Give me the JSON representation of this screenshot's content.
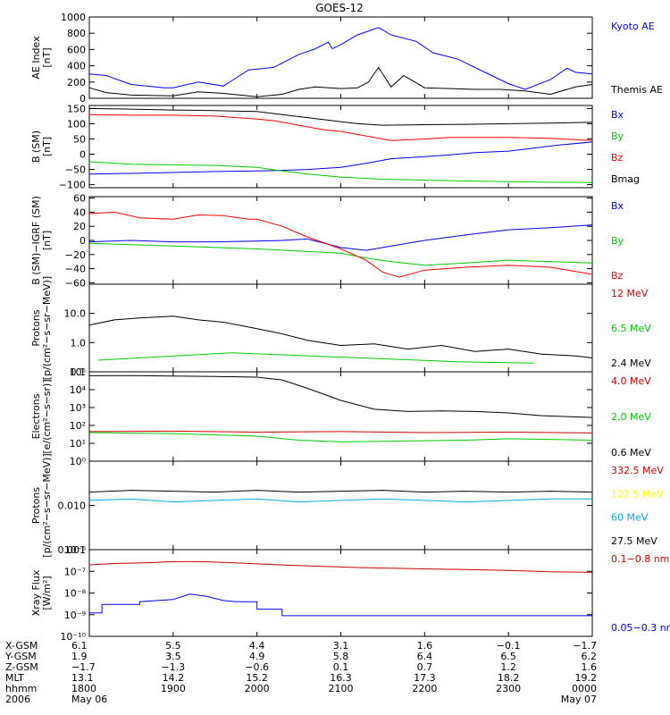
{
  "title": "GOES-12",
  "x_ticks_hours": [
    18,
    19,
    20,
    21,
    22,
    23,
    24
  ],
  "x_range_hours": [
    18,
    24
  ],
  "chart_data": [
    {
      "type": "line",
      "ylabel": "AE Index\n[nT]",
      "ylim": [
        0,
        1000
      ],
      "yticks": [
        {
          "v": 0,
          "t": "0"
        },
        {
          "v": 200,
          "t": "200"
        },
        {
          "v": 400,
          "t": "400"
        },
        {
          "v": 600,
          "t": "600"
        },
        {
          "v": 800,
          "t": "800"
        },
        {
          "v": 1000,
          "t": "1000"
        }
      ],
      "series": [
        {
          "name": "Kyoto AE",
          "color": "#0000ff",
          "x": [
            18.0,
            18.2,
            18.5,
            18.9,
            19.0,
            19.3,
            19.6,
            19.9,
            20.2,
            20.5,
            20.7,
            20.85,
            20.9,
            21.0,
            21.2,
            21.45,
            21.6,
            21.9,
            22.1,
            22.4,
            22.7,
            23.0,
            23.2,
            23.5,
            23.7,
            23.8,
            24.0
          ],
          "y": [
            300,
            280,
            170,
            130,
            130,
            200,
            150,
            350,
            380,
            540,
            610,
            690,
            610,
            660,
            780,
            870,
            780,
            700,
            560,
            480,
            330,
            180,
            110,
            230,
            370,
            320,
            300
          ]
        },
        {
          "name": "Themis AE",
          "color": "#000000",
          "x": [
            18.0,
            18.2,
            18.5,
            19.0,
            19.3,
            19.6,
            20.0,
            20.3,
            20.5,
            20.7,
            21.0,
            21.2,
            21.33,
            21.45,
            21.6,
            21.75,
            22.0,
            22.3,
            22.6,
            22.9,
            23.2,
            23.5,
            23.8,
            24.0
          ],
          "y": [
            130,
            70,
            40,
            30,
            80,
            60,
            20,
            50,
            110,
            140,
            120,
            130,
            200,
            380,
            140,
            280,
            130,
            120,
            110,
            110,
            90,
            50,
            140,
            170
          ]
        }
      ]
    },
    {
      "type": "line",
      "ylabel": "B (SM)\n[nT]",
      "ylim": [
        -110,
        160
      ],
      "yticks": [
        {
          "v": -100,
          "t": "−100"
        },
        {
          "v": -50,
          "t": "−50"
        },
        {
          "v": 0,
          "t": "0"
        },
        {
          "v": 50,
          "t": "50"
        },
        {
          "v": 100,
          "t": "100"
        },
        {
          "v": 150,
          "t": "150"
        }
      ],
      "series": [
        {
          "name": "Bx",
          "color": "#0000ff",
          "x": [
            18.0,
            18.5,
            19.0,
            19.5,
            20.0,
            20.3,
            20.6,
            21.0,
            21.3,
            21.6,
            22.0,
            22.3,
            22.6,
            23.0,
            23.3,
            23.6,
            24.0
          ],
          "y": [
            -65,
            -63,
            -60,
            -57,
            -55,
            -53,
            -50,
            -43,
            -30,
            -15,
            -8,
            -2,
            5,
            10,
            20,
            30,
            40
          ]
        },
        {
          "name": "By",
          "color": "#00cc00",
          "x": [
            18.0,
            18.5,
            19.0,
            19.5,
            20.0,
            20.3,
            20.6,
            21.0,
            21.5,
            22.0,
            22.5,
            23.0,
            23.5,
            24.0
          ],
          "y": [
            -25,
            -33,
            -35,
            -37,
            -43,
            -55,
            -65,
            -75,
            -82,
            -85,
            -88,
            -90,
            -92,
            -93
          ]
        },
        {
          "name": "Bz",
          "color": "#ff0000",
          "x": [
            18.0,
            18.5,
            19.0,
            19.5,
            20.0,
            20.2,
            20.5,
            20.8,
            21.0,
            21.3,
            21.6,
            22.0,
            22.3,
            22.7,
            23.0,
            23.5,
            24.0
          ],
          "y": [
            130,
            128,
            128,
            125,
            115,
            110,
            95,
            80,
            75,
            60,
            45,
            50,
            55,
            55,
            55,
            52,
            45
          ]
        },
        {
          "name": "Bmag",
          "color": "#000000",
          "x": [
            18.0,
            18.5,
            19.0,
            19.5,
            20.0,
            20.3,
            20.6,
            20.9,
            21.2,
            21.5,
            22.0,
            22.5,
            23.0,
            23.5,
            24.0
          ],
          "y": [
            150,
            148,
            145,
            143,
            140,
            130,
            120,
            110,
            100,
            95,
            97,
            98,
            100,
            102,
            105
          ]
        }
      ]
    },
    {
      "type": "line",
      "ylabel": "B (SM)−IGRF (SM)\n[nT]",
      "ylim": [
        -62,
        62
      ],
      "yticks": [
        {
          "v": -60,
          "t": "−60"
        },
        {
          "v": -40,
          "t": "−40"
        },
        {
          "v": -20,
          "t": "−20"
        },
        {
          "v": 0,
          "t": "0"
        },
        {
          "v": 20,
          "t": "20"
        },
        {
          "v": 40,
          "t": "40"
        },
        {
          "v": 60,
          "t": "60"
        }
      ],
      "series": [
        {
          "name": "Bx",
          "color": "#0000ff",
          "x": [
            18.0,
            18.5,
            19.0,
            19.5,
            20.0,
            20.3,
            20.6,
            21.0,
            21.3,
            21.5,
            22.0,
            22.5,
            23.0,
            23.5,
            24.0
          ],
          "y": [
            -2,
            0,
            -2,
            -2,
            -1,
            0,
            2,
            -10,
            -14,
            -10,
            0,
            8,
            15,
            18,
            22
          ]
        },
        {
          "name": "By",
          "color": "#00cc00",
          "x": [
            18.0,
            18.5,
            19.0,
            19.5,
            20.0,
            20.5,
            21.0,
            21.3,
            21.6,
            22.0,
            22.5,
            23.0,
            23.5,
            24.0
          ],
          "y": [
            -4,
            -6,
            -8,
            -10,
            -12,
            -15,
            -18,
            -25,
            -30,
            -35,
            -32,
            -28,
            -30,
            -32
          ]
        },
        {
          "name": "Bz",
          "color": "#ff0000",
          "x": [
            18.0,
            18.3,
            18.6,
            19.0,
            19.3,
            19.6,
            19.9,
            20.0,
            20.3,
            20.6,
            21.0,
            21.3,
            21.5,
            21.7,
            22.0,
            22.5,
            23.0,
            23.5,
            24.0
          ],
          "y": [
            38,
            40,
            32,
            30,
            36,
            35,
            30,
            30,
            20,
            5,
            -12,
            -28,
            -45,
            -52,
            -42,
            -38,
            -35,
            -38,
            -48
          ]
        }
      ]
    },
    {
      "type": "line",
      "ylabel": "Protons\n[p/(cm²−s−sr−MeV)]",
      "yscale": "log",
      "ylim": [
        0.1,
        100
      ],
      "yticks": [
        {
          "v": 0.1,
          "t": "0.1"
        },
        {
          "v": 1,
          "t": "1.0"
        },
        {
          "v": 10,
          "t": "10.0"
        }
      ],
      "series": [
        {
          "name": "12 MeV",
          "color": "#cc0000",
          "x": [],
          "y": []
        },
        {
          "name": "6.5 MeV",
          "color": "#00cc00",
          "x": [
            18.1,
            19.7,
            22.4,
            23.3
          ],
          "y": [
            0.25,
            0.45,
            0.22,
            0.2
          ]
        },
        {
          "name": "2.4 MeV",
          "color": "#000000",
          "x": [
            18.0,
            18.3,
            18.6,
            19.0,
            19.3,
            19.6,
            20.0,
            20.3,
            20.6,
            21.0,
            21.4,
            21.8,
            22.2,
            22.6,
            23.0,
            23.4,
            23.8,
            24.0
          ],
          "y": [
            4,
            6,
            7,
            8,
            6,
            5,
            3,
            2,
            1.2,
            0.8,
            0.9,
            0.6,
            0.8,
            0.5,
            0.6,
            0.4,
            0.35,
            0.3
          ]
        }
      ]
    },
    {
      "type": "line",
      "ylabel": "Electrons\n[e/(cm²−s−sr)]",
      "yscale": "log",
      "ylim": [
        1,
        100000
      ],
      "yticks": [
        {
          "v": 1,
          "t": "10⁰"
        },
        {
          "v": 10,
          "t": "10¹"
        },
        {
          "v": 100,
          "t": "10²"
        },
        {
          "v": 1000,
          "t": "10³"
        },
        {
          "v": 10000,
          "t": "10⁴"
        },
        {
          "v": 100000,
          "t": "10⁵"
        }
      ],
      "series": [
        {
          "name": "4.0 MeV",
          "color": "#cc0000",
          "x": [
            18.0,
            19.0,
            20.0,
            21.0,
            22.0,
            23.0,
            24.0
          ],
          "y": [
            45,
            48,
            42,
            45,
            40,
            42,
            38
          ]
        },
        {
          "name": "2.0 MeV",
          "color": "#00cc00",
          "x": [
            18.0,
            19.0,
            20.0,
            20.5,
            21.0,
            21.5,
            22.0,
            22.5,
            23.0,
            24.0
          ],
          "y": [
            40,
            35,
            25,
            15,
            12,
            13,
            14,
            15,
            18,
            15
          ]
        },
        {
          "name": "0.6 MeV",
          "color": "#000000",
          "x": [
            18.0,
            18.5,
            19.0,
            19.5,
            20.0,
            20.3,
            20.6,
            21.0,
            21.4,
            21.8,
            22.2,
            22.6,
            23.0,
            23.4,
            24.0
          ],
          "y": [
            60000,
            62000,
            58000,
            55000,
            50000,
            35000,
            12000,
            2500,
            800,
            600,
            650,
            600,
            500,
            350,
            280
          ]
        }
      ]
    },
    {
      "type": "line",
      "ylabel": "Protons\n[p/(cm²−s−sr−MeV)]",
      "yscale": "log",
      "ylim": [
        0.001,
        0.1
      ],
      "yticks": [
        {
          "v": 0.001,
          "t": "0.001"
        },
        {
          "v": 0.01,
          "t": "0.010"
        }
      ],
      "series": [
        {
          "name": "332.5 MeV",
          "color": "#cc0000",
          "x": [],
          "y": []
        },
        {
          "name": "122.5 MeV",
          "color": "#ffff00",
          "x": [],
          "y": []
        },
        {
          "name": "60 MeV",
          "color": "#00aaee",
          "x": [
            18.0,
            18.5,
            19.0,
            19.5,
            20.0,
            20.5,
            21.0,
            21.5,
            22.0,
            22.5,
            23.0,
            23.5,
            24.0
          ],
          "y": [
            0.013,
            0.014,
            0.012,
            0.013,
            0.014,
            0.012,
            0.013,
            0.014,
            0.013,
            0.012,
            0.013,
            0.014,
            0.014
          ]
        },
        {
          "name": "27.5 MeV",
          "color": "#000000",
          "x": [
            18.0,
            18.5,
            19.0,
            19.5,
            20.0,
            20.5,
            21.0,
            21.5,
            22.0,
            22.5,
            23.0,
            23.5,
            24.0
          ],
          "y": [
            0.02,
            0.022,
            0.021,
            0.02,
            0.022,
            0.02,
            0.021,
            0.022,
            0.02,
            0.021,
            0.02,
            0.021,
            0.02
          ]
        }
      ]
    },
    {
      "type": "line",
      "ylabel": "Xray Flux\n[W/m²]",
      "yscale": "log",
      "ylim": [
        1e-10,
        1e-06
      ],
      "yticks": [
        {
          "v": 1e-10,
          "t": "10⁻¹⁰"
        },
        {
          "v": 1e-09,
          "t": "10⁻⁹"
        },
        {
          "v": 1e-08,
          "t": "10⁻⁸"
        },
        {
          "v": 1e-07,
          "t": "10⁻⁷"
        },
        {
          "v": 1e-06,
          "t": "10⁻⁶"
        }
      ],
      "series": [
        {
          "name": "0.1−0.8 nm",
          "color": "#cc0000",
          "x": [
            18.0,
            18.3,
            18.7,
            19.0,
            19.3,
            19.6,
            20.0,
            20.4,
            20.8,
            21.2,
            21.6,
            22.0,
            22.5,
            23.0,
            23.5,
            24.0
          ],
          "y": [
            2e-07,
            2.3e-07,
            2.5e-07,
            2.8e-07,
            2.8e-07,
            2.6e-07,
            2.2e-07,
            1.9e-07,
            1.7e-07,
            1.5e-07,
            1.4e-07,
            1.3e-07,
            1.2e-07,
            1.1e-07,
            9.5e-08,
            9e-08
          ]
        },
        {
          "name": "0.05−0.3 nm",
          "color": "#0000ff",
          "x": [
            18.0,
            18.15,
            18.15,
            18.6,
            18.6,
            19.0,
            19.2,
            19.4,
            19.6,
            19.75,
            20.0,
            20.0,
            20.3,
            20.3,
            24.0
          ],
          "y": [
            1.2e-09,
            1.2e-09,
            3e-09,
            3e-09,
            4e-09,
            5e-09,
            9e-09,
            7e-09,
            4.5e-09,
            4e-09,
            4e-09,
            1.8e-09,
            1.8e-09,
            9e-10,
            9e-10
          ]
        }
      ]
    }
  ],
  "orbit_table": {
    "rows": [
      {
        "label": "X-GSM",
        "values": [
          "6.1",
          "5.5",
          "4.4",
          "3.1",
          "1.6",
          "−0.1",
          "−1.7"
        ]
      },
      {
        "label": "Y-GSM",
        "values": [
          "1.9",
          "3.5",
          "4.9",
          "5.8",
          "6.4",
          "6.5",
          "6.2"
        ]
      },
      {
        "label": "Z-GSM",
        "values": [
          "−1.7",
          "−1.3",
          "−0.6",
          "0.1",
          "0.7",
          "1.2",
          "1.6"
        ]
      },
      {
        "label": "MLT",
        "values": [
          "13.1",
          "14.2",
          "15.2",
          "16.3",
          "17.3",
          "18.2",
          "19.2"
        ]
      },
      {
        "label": "hhmm",
        "values": [
          "1800",
          "1900",
          "2000",
          "2100",
          "2200",
          "2300",
          "0000"
        ]
      },
      {
        "label": "2006",
        "values": [
          "May 06",
          "",
          "",
          "",
          "",
          "",
          "May 07"
        ]
      }
    ]
  }
}
